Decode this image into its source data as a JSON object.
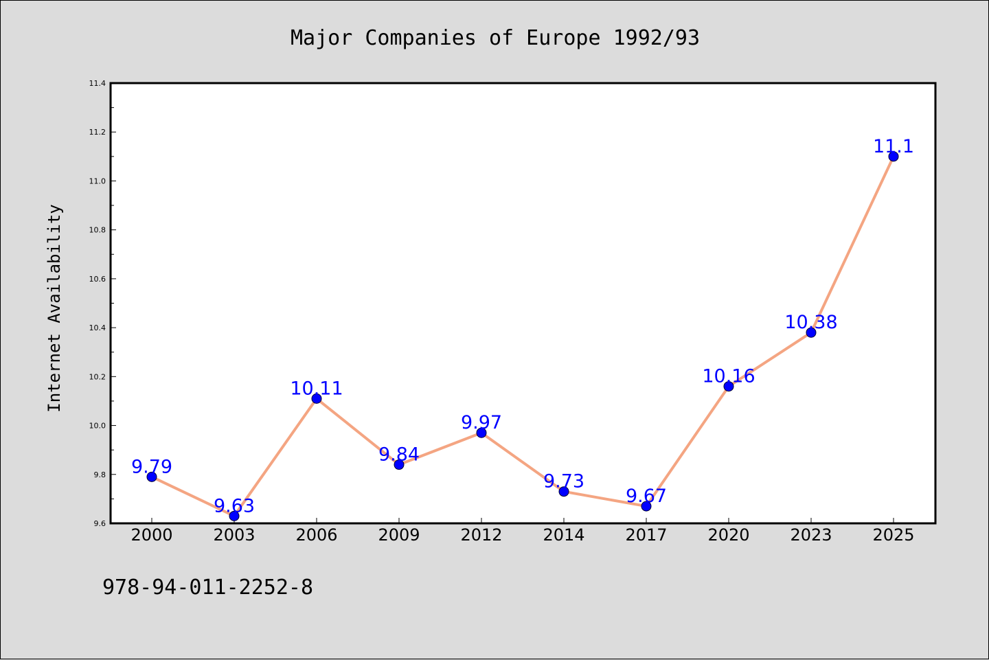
{
  "chart_data": {
    "type": "line",
    "title": "Major Companies of Europe 1992/93",
    "xlabel": "",
    "ylabel": "Internet Availability",
    "categories": [
      "2000",
      "2003",
      "2006",
      "2009",
      "2012",
      "2014",
      "2017",
      "2020",
      "2023",
      "2025"
    ],
    "series": [
      {
        "values": [
          9.79,
          9.63,
          10.11,
          9.84,
          9.97,
          9.73,
          9.67,
          10.16,
          10.38,
          11.1
        ],
        "labels": [
          "9.79",
          "9.63",
          "10.11",
          "9.84",
          "9.97",
          "9.73",
          "9.67",
          "10.16",
          "10.38",
          "11.1"
        ]
      }
    ],
    "ylim": [
      9.6,
      11.4
    ],
    "yticks": [
      "9.6",
      "9.8",
      "10.0",
      "10.2",
      "10.4",
      "10.6",
      "10.8",
      "11.0",
      "11.2",
      "11.4"
    ],
    "grid": false,
    "legend": "none",
    "colors": {
      "line": "#f4a582",
      "marker": "#0000ff",
      "label": "#0000ff",
      "background": "#dcdcdc",
      "plot_background": "#ffffff"
    }
  },
  "footer": {
    "text": "978-94-011-2252-8"
  }
}
